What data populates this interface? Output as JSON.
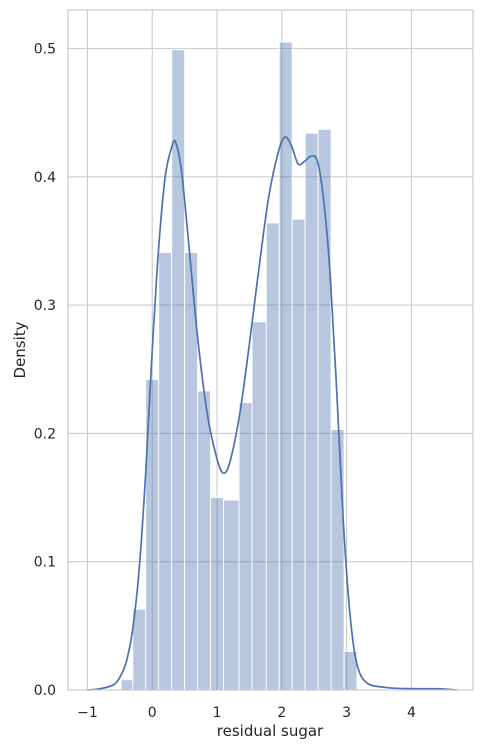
{
  "chart_data": {
    "type": "histogram",
    "xlabel": "residual sugar",
    "ylabel": "Density",
    "xlim": [
      -1.3,
      4.95
    ],
    "ylim": [
      0,
      0.53
    ],
    "xticks": [
      -1,
      0,
      1,
      2,
      3,
      4
    ],
    "xtick_labels": [
      "−1",
      "0",
      "1",
      "2",
      "3",
      "4"
    ],
    "yticks": [
      0.0,
      0.1,
      0.2,
      0.3,
      0.4,
      0.5
    ],
    "ytick_labels": [
      "0.0",
      "0.1",
      "0.2",
      "0.3",
      "0.4",
      "0.5"
    ],
    "grid": true,
    "bar_color": "#4c72b0",
    "bar_alpha": 0.4,
    "line_color": "#4c72b0",
    "bins": [
      {
        "x0": -0.48,
        "x1": -0.3,
        "density": 0.008
      },
      {
        "x0": -0.3,
        "x1": -0.1,
        "density": 0.063
      },
      {
        "x0": -0.1,
        "x1": 0.1,
        "density": 0.242
      },
      {
        "x0": 0.1,
        "x1": 0.3,
        "density": 0.341
      },
      {
        "x0": 0.3,
        "x1": 0.5,
        "density": 0.499
      },
      {
        "x0": 0.5,
        "x1": 0.7,
        "density": 0.341
      },
      {
        "x0": 0.7,
        "x1": 0.9,
        "density": 0.233
      },
      {
        "x0": 0.9,
        "x1": 1.1,
        "density": 0.15
      },
      {
        "x0": 1.1,
        "x1": 1.34,
        "density": 0.148
      },
      {
        "x0": 1.34,
        "x1": 1.54,
        "density": 0.224
      },
      {
        "x0": 1.54,
        "x1": 1.76,
        "density": 0.287
      },
      {
        "x0": 1.76,
        "x1": 1.96,
        "density": 0.364
      },
      {
        "x0": 1.96,
        "x1": 2.16,
        "density": 0.505
      },
      {
        "x0": 2.16,
        "x1": 2.36,
        "density": 0.367
      },
      {
        "x0": 2.36,
        "x1": 2.56,
        "density": 0.434
      },
      {
        "x0": 2.56,
        "x1": 2.76,
        "density": 0.437
      },
      {
        "x0": 2.76,
        "x1": 2.96,
        "density": 0.203
      },
      {
        "x0": 2.96,
        "x1": 3.16,
        "density": 0.03
      }
    ],
    "kde": {
      "x": [
        -1.0,
        -0.8,
        -0.6,
        -0.5,
        -0.4,
        -0.3,
        -0.2,
        -0.1,
        0.0,
        0.1,
        0.2,
        0.3,
        0.36,
        0.45,
        0.55,
        0.7,
        0.85,
        1.0,
        1.1,
        1.2,
        1.35,
        1.5,
        1.65,
        1.8,
        1.95,
        2.05,
        2.15,
        2.25,
        2.35,
        2.45,
        2.55,
        2.65,
        2.75,
        2.85,
        2.95,
        3.05,
        3.15,
        3.3,
        3.6,
        4.0,
        4.4,
        4.7
      ],
      "y": [
        0.0,
        0.001,
        0.004,
        0.01,
        0.022,
        0.048,
        0.095,
        0.17,
        0.265,
        0.345,
        0.4,
        0.423,
        0.427,
        0.405,
        0.355,
        0.275,
        0.215,
        0.18,
        0.169,
        0.178,
        0.215,
        0.27,
        0.33,
        0.385,
        0.42,
        0.431,
        0.424,
        0.41,
        0.412,
        0.416,
        0.412,
        0.38,
        0.32,
        0.23,
        0.13,
        0.06,
        0.022,
        0.006,
        0.002,
        0.001,
        0.001,
        0.0
      ]
    }
  }
}
